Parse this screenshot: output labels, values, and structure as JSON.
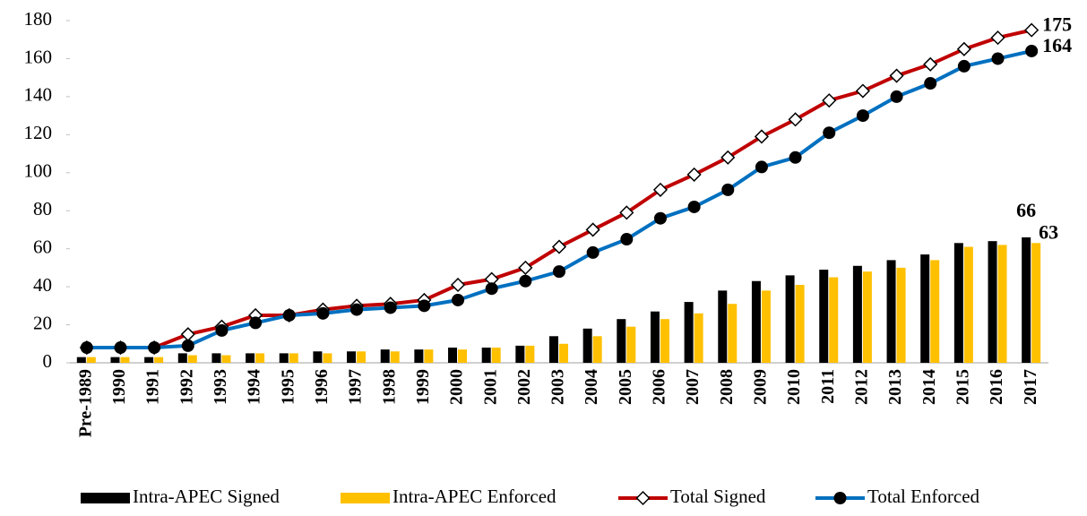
{
  "chart_data": {
    "type": "combo",
    "categories": [
      "Pre-1989",
      "1990",
      "1991",
      "1992",
      "1993",
      "1994",
      "1995",
      "1996",
      "1997",
      "1998",
      "1999",
      "2000",
      "2001",
      "2002",
      "2003",
      "2004",
      "2005",
      "2006",
      "2007",
      "2008",
      "2009",
      "2010",
      "2011",
      "2012",
      "2013",
      "2014",
      "2015",
      "2016",
      "2017"
    ],
    "series": [
      {
        "name": "Intra-APEC Signed",
        "type": "bar",
        "color": "#000000",
        "values": [
          3,
          3,
          3,
          5,
          5,
          5,
          5,
          6,
          6,
          7,
          7,
          8,
          8,
          9,
          14,
          18,
          23,
          27,
          32,
          38,
          43,
          46,
          49,
          51,
          54,
          57,
          63,
          64,
          66
        ]
      },
      {
        "name": "Intra-APEC Enforced",
        "type": "bar",
        "color": "#ffc000",
        "values": [
          3,
          3,
          3,
          4,
          4,
          5,
          5,
          5,
          6,
          6,
          7,
          7,
          8,
          9,
          10,
          14,
          19,
          23,
          26,
          31,
          38,
          41,
          45,
          48,
          50,
          54,
          61,
          62,
          63
        ]
      },
      {
        "name": "Total Signed",
        "type": "line",
        "marker": "diamond",
        "color": "#c00000",
        "values": [
          8,
          8,
          8,
          15,
          19,
          25,
          25,
          28,
          30,
          31,
          33,
          41,
          44,
          50,
          61,
          70,
          79,
          91,
          99,
          108,
          119,
          128,
          138,
          143,
          151,
          157,
          165,
          171,
          175
        ]
      },
      {
        "name": "Total Enforced",
        "type": "line",
        "marker": "circle",
        "color": "#0070c0",
        "values": [
          8,
          8,
          8,
          9,
          17,
          21,
          25,
          26,
          28,
          29,
          30,
          33,
          39,
          43,
          48,
          58,
          65,
          76,
          82,
          91,
          103,
          108,
          121,
          130,
          140,
          147,
          156,
          160,
          164
        ]
      }
    ],
    "ylim": [
      0,
      180
    ],
    "yticks": [
      0,
      20,
      40,
      60,
      80,
      100,
      120,
      140,
      160,
      180
    ],
    "grid": false,
    "legend": "bottom"
  }
}
